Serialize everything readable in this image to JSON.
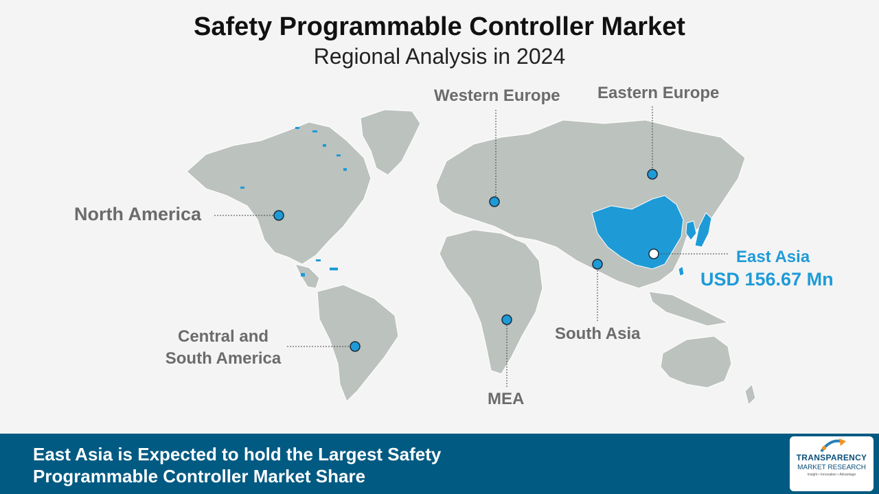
{
  "header": {
    "title": "Safety Programmable Controller Market",
    "subtitle": "Regional Analysis in 2024"
  },
  "regions": [
    {
      "name": "Western Europe",
      "highlighted": false
    },
    {
      "name": "Eastern Europe",
      "highlighted": false
    },
    {
      "name": "North America",
      "highlighted": false
    },
    {
      "name": "East Asia",
      "value": "USD 156.67 Mn",
      "highlighted": true
    },
    {
      "name": "Central and South America",
      "line1": "Central and",
      "line2": "South America",
      "highlighted": false
    },
    {
      "name": "South Asia",
      "highlighted": false
    },
    {
      "name": "MEA",
      "highlighted": false
    }
  ],
  "footer": {
    "line1": "East Asia is Expected to hold the Largest Safety",
    "line2": "Programmable Controller Market Share"
  },
  "logo": {
    "name": "TRANSPARENCY",
    "sub": "MARKET RESEARCH",
    "tagline": "Insight • Innovation • Advantage"
  },
  "colors": {
    "land": "#bcc2bd",
    "highlight": "#1e9bd7",
    "label": "#6b6b6b",
    "footer_bg": "#005a82",
    "marker": "#1e9bd7"
  }
}
